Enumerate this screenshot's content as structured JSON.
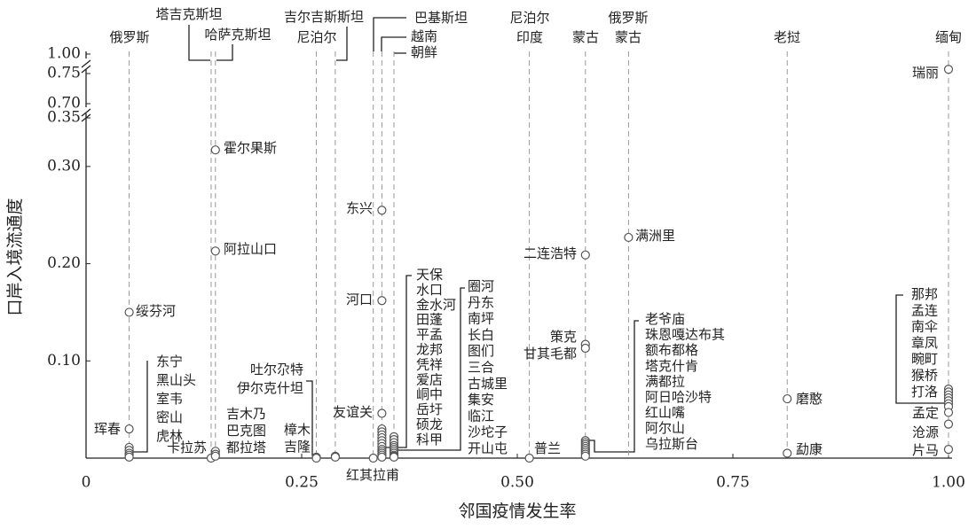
{
  "chart_data": {
    "type": "scatter",
    "xlabel": "邻国疫情发生率",
    "ylabel": "口岸入境流通度",
    "xlim": [
      0,
      1
    ],
    "xticks": [
      0,
      0.25,
      {
        "value": 0.5,
        "label": "0.50"
      },
      0.75,
      {
        "value": 1,
        "label": "1.00"
      }
    ],
    "ylim": [
      0,
      1
    ],
    "y_segments": [
      [
        0,
        0.35
      ],
      [
        0.7,
        0.75
      ],
      [
        1,
        1
      ]
    ],
    "yticks": [
      {
        "value": 0.1,
        "label": "0.10"
      },
      {
        "value": 0.2,
        "label": "0.20"
      },
      {
        "value": 0.3,
        "label": "0.30"
      },
      0.35,
      {
        "value": 0.7,
        "label": "0.70"
      },
      0.75,
      {
        "value": 1,
        "label": "1.00"
      }
    ],
    "countries": [
      {
        "lines": [
          "俄罗斯"
        ],
        "x": 0.05
      },
      {
        "lines": [
          "塔吉克斯坦"
        ],
        "x": 0.145
      },
      {
        "lines": [
          "哈萨克斯坦"
        ],
        "x": 0.15
      },
      {
        "lines": [
          "吉尔吉斯斯坦"
        ],
        "x": 0.289
      },
      {
        "lines": [
          "尼泊尔"
        ],
        "x": 0.267
      },
      {
        "lines": [
          "巴基斯坦"
        ],
        "x": 0.333
      },
      {
        "lines": [
          "越南"
        ],
        "x": 0.343
      },
      {
        "lines": [
          "朝鲜"
        ],
        "x": 0.357
      },
      {
        "lines": [
          "尼泊尔",
          "印度"
        ],
        "x": 0.514
      },
      {
        "lines": [
          "蒙古"
        ],
        "x": 0.579
      },
      {
        "lines": [
          "俄罗斯",
          "蒙古"
        ],
        "x": 0.629
      },
      {
        "lines": [
          "老挝"
        ],
        "x": 0.813
      },
      {
        "lines": [
          "缅甸"
        ],
        "x": 1
      }
    ],
    "labels": [
      "绥芬河",
      "珲春",
      "东宁",
      "黑山头",
      "室韦",
      "密山",
      "虎林",
      "霍尔果斯",
      "阿拉山口",
      "卡拉苏",
      "吉木乃",
      "巴克图",
      "都拉塔",
      "吐尔尕特",
      "伊尔克什坦",
      "樟木",
      "吉隆",
      "红其拉甫",
      "东兴",
      "河口",
      "友谊关",
      "天保",
      "水口",
      "金水河",
      "田蓬",
      "平孟",
      "龙邦",
      "凭祥",
      "爱店",
      "峒中",
      "岳圩",
      "硕龙",
      "科甲",
      "圈河",
      "丹东",
      "南坪",
      "长白",
      "图们",
      "三合",
      "古城里",
      "集安",
      "临江",
      "沙坨子",
      "开山屯",
      "普兰",
      "二连浩特",
      "策克",
      "甘其毛都",
      "老爷庙",
      "珠恩嘎达布其",
      "额布都格",
      "塔克什肯",
      "满都拉",
      "阿日哈沙特",
      "红山嘴",
      "阿尔山",
      "乌拉斯台",
      "满洲里",
      "磨憨",
      "勐康",
      "瑞丽",
      "那邦",
      "孟连",
      "南伞",
      "章凤",
      "畹町",
      "猴桥",
      "打洛",
      "孟定",
      "沧源",
      "片马"
    ],
    "x": [
      0.05,
      0.05,
      0.05,
      0.05,
      0.05,
      0.05,
      0.05,
      0.15,
      0.15,
      0.145,
      0.15,
      0.15,
      0.15,
      0.267,
      0.267,
      0.289,
      0.289,
      0.333,
      0.343,
      0.343,
      0.343,
      0.343,
      0.343,
      0.343,
      0.343,
      0.343,
      0.343,
      0.343,
      0.343,
      0.343,
      0.343,
      0.343,
      0.343,
      0.357,
      0.357,
      0.357,
      0.357,
      0.357,
      0.357,
      0.357,
      0.357,
      0.357,
      0.357,
      0.357,
      0.514,
      0.579,
      0.579,
      0.579,
      0.579,
      0.579,
      0.579,
      0.579,
      0.579,
      0.579,
      0.579,
      0.579,
      0.579,
      0.629,
      0.813,
      0.813,
      1,
      1,
      1,
      1,
      1,
      1,
      1,
      1,
      1,
      1,
      1
    ],
    "values": [
      0.15,
      0.03,
      0.011,
      0.008,
      0.005,
      0.003,
      0.001,
      0.317,
      0.213,
      0,
      0.007,
      0.004,
      0.002,
      0.001,
      0,
      0.002,
      0.001,
      0,
      0.255,
      0.162,
      0.046,
      0.03,
      0.027,
      0.024,
      0.021,
      0.018,
      0.015,
      0.012,
      0.009,
      0.007,
      0.005,
      0.003,
      0.001,
      0.022,
      0.019,
      0.016,
      0.013,
      0.011,
      0.009,
      0.007,
      0.005,
      0.003,
      0.002,
      0.001,
      0,
      0.209,
      0.117,
      0.113,
      0.018,
      0.016,
      0.014,
      0.012,
      0.01,
      0.008,
      0.006,
      0.004,
      0.002,
      0.227,
      0.061,
      0.005,
      0.757,
      0.071,
      0.068,
      0.065,
      0.062,
      0.059,
      0.056,
      0.053,
      0.047,
      0.035,
      0.009
    ]
  }
}
